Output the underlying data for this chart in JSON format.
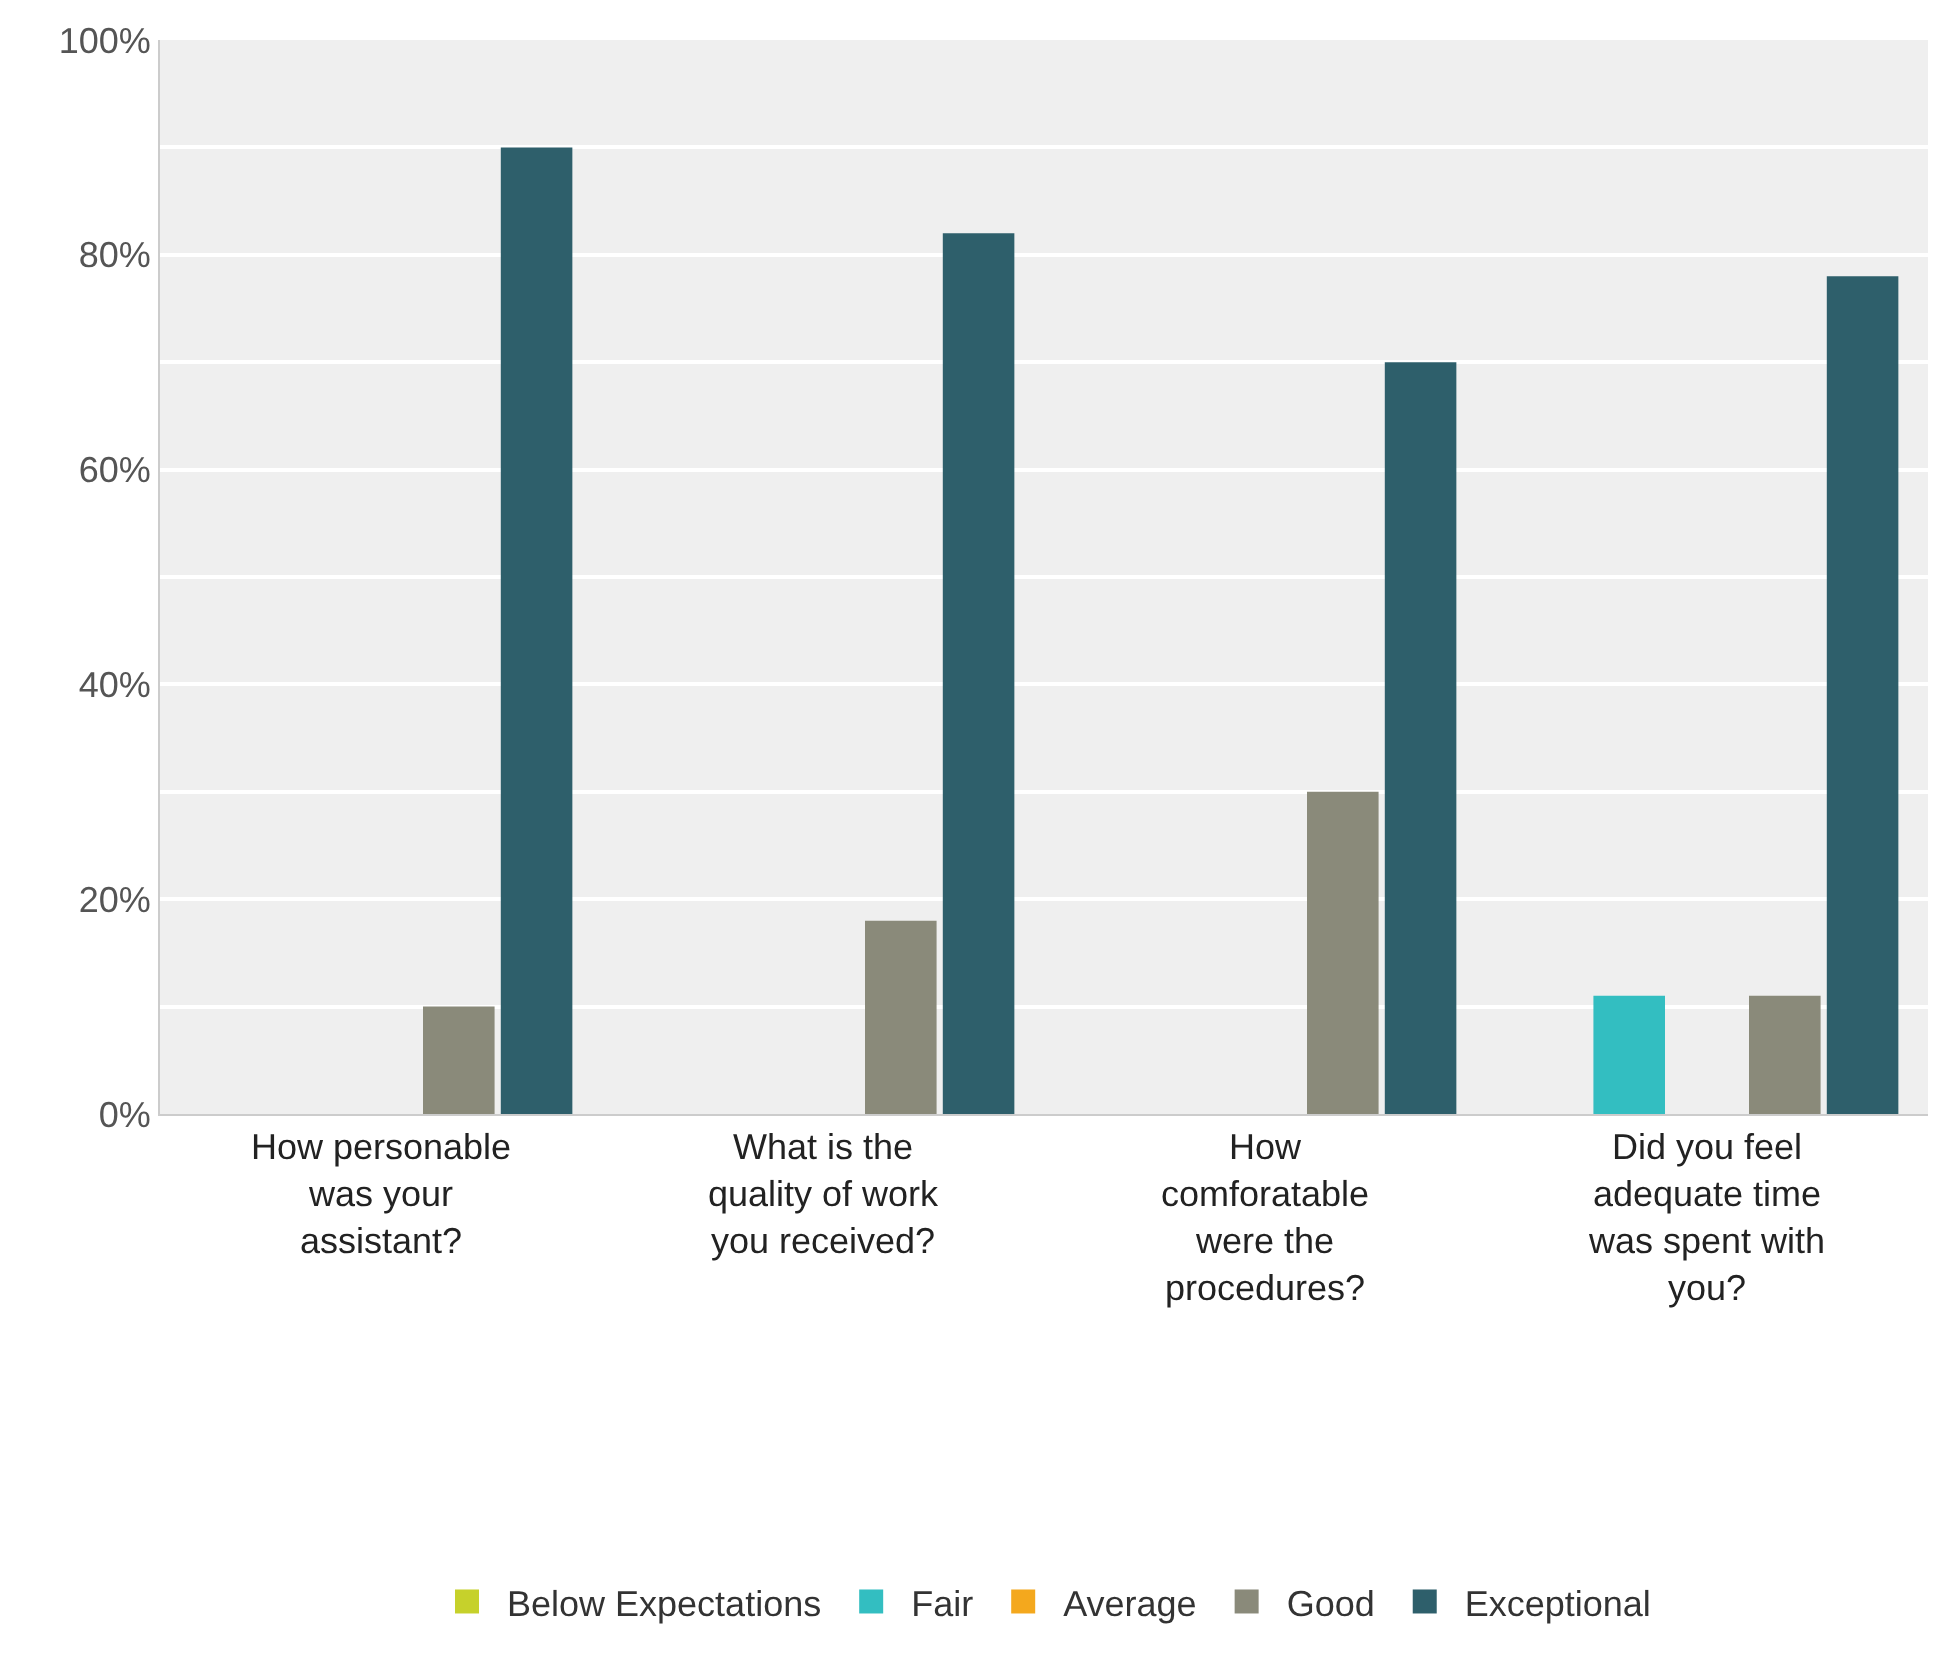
{
  "chart_data": {
    "type": "bar",
    "categories": [
      "How personable was your assistant?",
      "What is the quality of work you received?",
      "How comforatable were the procedures?",
      "Did you feel adequate time was spent with you?"
    ],
    "series": [
      {
        "name": "Below Expectations",
        "color": "#c6d12b",
        "values": [
          0,
          0,
          0,
          0
        ]
      },
      {
        "name": "Fair",
        "color": "#33bec1",
        "values": [
          0,
          0,
          0,
          11
        ]
      },
      {
        "name": "Average",
        "color": "#f4a81d",
        "values": [
          0,
          0,
          0,
          0
        ]
      },
      {
        "name": "Good",
        "color": "#8a8a7a",
        "values": [
          10,
          18,
          30,
          11
        ]
      },
      {
        "name": "Exceptional",
        "color": "#2e5f6b",
        "values": [
          90,
          82,
          70,
          78
        ]
      }
    ],
    "ylim": [
      0,
      100
    ],
    "yticks": [
      {
        "value": 0,
        "label": "0%"
      },
      {
        "value": 20,
        "label": "20%"
      },
      {
        "value": 40,
        "label": "40%"
      },
      {
        "value": 60,
        "label": "60%"
      },
      {
        "value": 80,
        "label": "80%"
      },
      {
        "value": 100,
        "label": "100%"
      }
    ],
    "grid": "y",
    "legend": "bottom"
  }
}
